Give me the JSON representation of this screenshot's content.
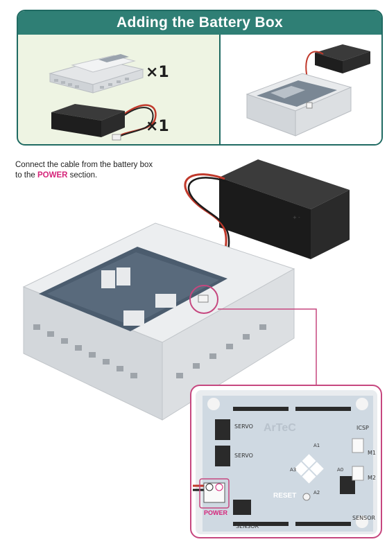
{
  "header": {
    "title": "Adding the Battery Box",
    "qty_case": "×1",
    "qty_battery": "×1"
  },
  "instruction": {
    "line1": "Connect the cable from the battery box",
    "line2_prefix": "to the ",
    "line2_highlight": "POWER",
    "line2_suffix": " section."
  },
  "board_labels": {
    "servo_top": "SERVO",
    "servo_bottom": "SERVO",
    "icsp": "ICSP",
    "m1": "M1",
    "m2": "M2",
    "a1": "A1",
    "a3": "A3",
    "a0": "A0",
    "a2": "A2",
    "reset": "RESET",
    "sensor_right": "SENSOR",
    "sensor_bottom": "SENSOR",
    "power": "POWER",
    "brand": "ArTeC"
  },
  "colors": {
    "header_bg": "#2f7f75",
    "card_bg": "#eef4e3",
    "power_highlight": "#d6247a",
    "callout_border": "#c6477f"
  }
}
